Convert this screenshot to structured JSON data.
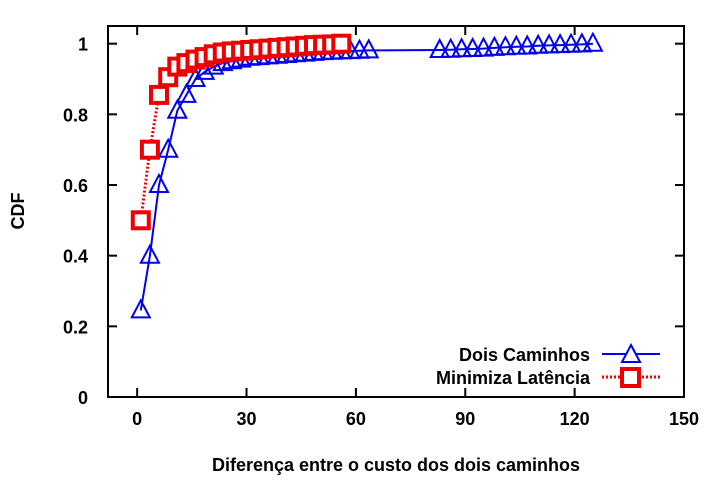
{
  "chart_data": {
    "type": "line",
    "title": "",
    "xlabel": "Diferença entre o custo dos dois caminhos",
    "ylabel": "CDF",
    "xlim": [
      -8,
      150
    ],
    "ylim": [
      0,
      1.05
    ],
    "x_ticks": [
      0,
      30,
      60,
      90,
      120,
      150
    ],
    "x_tick_labels": [
      "0",
      "30",
      "60",
      "90",
      "120",
      "150"
    ],
    "y_ticks": [
      0,
      0.2,
      0.4,
      0.6,
      0.8,
      1
    ],
    "y_tick_labels": [
      "0",
      "0.2",
      "0.4",
      "0.6",
      "0.8",
      "1"
    ],
    "grid": false,
    "legend_position": "bottom-right",
    "series": [
      {
        "name": "Dois Caminhos",
        "color": "#0000ee",
        "marker": "triangle",
        "line_style": "solid",
        "x": [
          1,
          3.5,
          6,
          8.5,
          11,
          13.5,
          16,
          18.5,
          21,
          23.5,
          26,
          28.5,
          31,
          33.5,
          36,
          38.5,
          41,
          43.5,
          46,
          48.5,
          51,
          53.5,
          56,
          58.5,
          61,
          63.5,
          83,
          86,
          89,
          92,
          95,
          98,
          101,
          104,
          107,
          110,
          113,
          116,
          119,
          122,
          125
        ],
        "y": [
          0.245,
          0.4,
          0.6,
          0.7,
          0.81,
          0.855,
          0.9,
          0.92,
          0.935,
          0.945,
          0.95,
          0.955,
          0.96,
          0.962,
          0.964,
          0.966,
          0.968,
          0.97,
          0.972,
          0.974,
          0.976,
          0.977,
          0.978,
          0.979,
          0.98,
          0.981,
          0.982,
          0.983,
          0.984,
          0.985,
          0.986,
          0.988,
          0.99,
          0.991,
          0.992,
          0.994,
          0.995,
          0.996,
          0.997,
          0.998,
          1.0
        ]
      },
      {
        "name": "Minimiza Latência",
        "color": "#ee0000",
        "marker": "square",
        "line_style": "dotted",
        "x": [
          1,
          3.5,
          6,
          8.5,
          11,
          13.5,
          16,
          18.5,
          21,
          23.5,
          26,
          28.5,
          31,
          33.5,
          36,
          38.5,
          41,
          43.5,
          46,
          48.5,
          51,
          53.5,
          56
        ],
        "y": [
          0.5,
          0.7,
          0.855,
          0.905,
          0.935,
          0.945,
          0.955,
          0.962,
          0.97,
          0.975,
          0.978,
          0.98,
          0.982,
          0.984,
          0.986,
          0.988,
          0.99,
          0.992,
          0.994,
          0.996,
          0.997,
          0.998,
          1.0
        ]
      }
    ]
  }
}
